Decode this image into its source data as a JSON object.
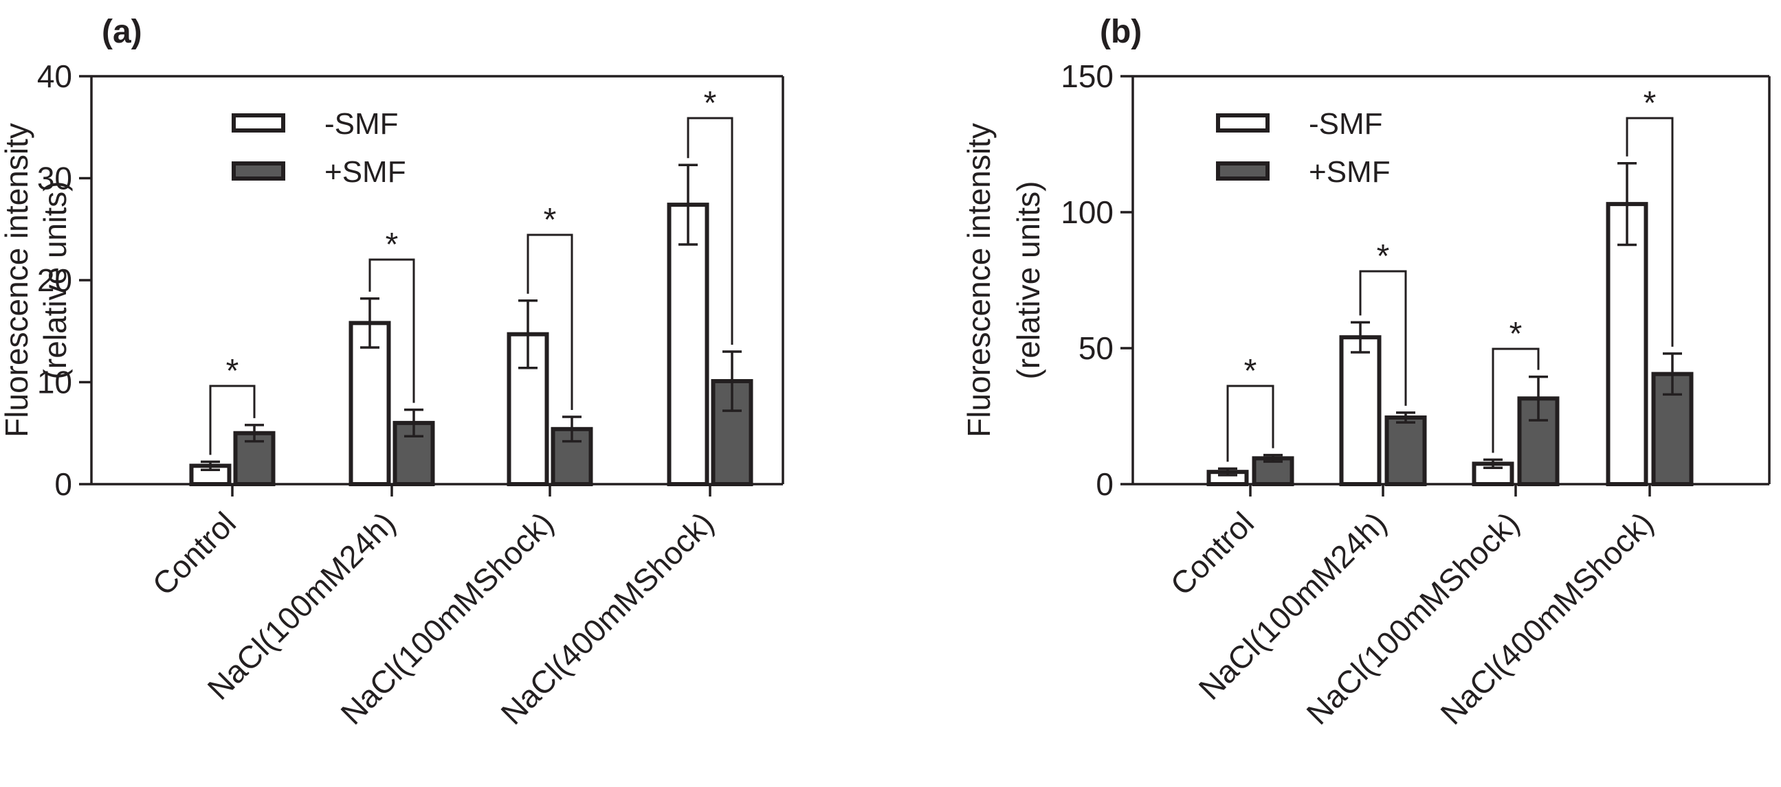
{
  "colors": {
    "minus_fill": "#ffffff",
    "plus_fill": "#595959",
    "ink": "#231f20"
  },
  "chart_data": [
    {
      "panel_label": "(a)",
      "type": "bar",
      "ylabel_line1": "Fluorescence intensity",
      "ylabel_line2": "(relative units)",
      "ylim": [
        0,
        40
      ],
      "yticks": [
        0,
        10,
        20,
        30,
        40
      ],
      "categories": [
        "Control",
        "NaCl(100mM24h)",
        "NaCl(100mMShock)",
        "NaCl(400mMShock)"
      ],
      "series": [
        {
          "name": "-SMF",
          "values": [
            1.8,
            15.8,
            14.7,
            27.4
          ],
          "errors": [
            0.4,
            2.4,
            3.3,
            3.9
          ]
        },
        {
          "name": "+SMF",
          "values": [
            5.0,
            6.0,
            5.4,
            10.1
          ],
          "errors": [
            0.8,
            1.3,
            1.2,
            2.9
          ]
        }
      ],
      "significance": [
        {
          "category": "Control",
          "label": "*"
        },
        {
          "category": "NaCl(100mM24h)",
          "label": "*"
        },
        {
          "category": "NaCl(100mMShock)",
          "label": "*"
        },
        {
          "category": "NaCl(400mMShock)",
          "label": "*"
        }
      ]
    },
    {
      "panel_label": "(b)",
      "type": "bar",
      "ylabel_line1": "Fluorescence intensity",
      "ylabel_line2": "(relative units)",
      "ylim": [
        0,
        150
      ],
      "yticks": [
        0,
        50,
        100,
        150
      ],
      "categories": [
        "Control",
        "NaCl(100mM24h)",
        "NaCl(100mMShock)",
        "NaCl(400mMShock)"
      ],
      "series": [
        {
          "name": "-SMF",
          "values": [
            4.5,
            54,
            7.5,
            103
          ],
          "errors": [
            1.2,
            5.5,
            1.5,
            15
          ]
        },
        {
          "name": "+SMF",
          "values": [
            9.5,
            24.5,
            31.5,
            40.5
          ],
          "errors": [
            1.2,
            1.8,
            8,
            7.5
          ]
        }
      ],
      "significance": [
        {
          "category": "Control",
          "label": "*"
        },
        {
          "category": "NaCl(100mM24h)",
          "label": "*"
        },
        {
          "category": "NaCl(100mMShock)",
          "label": "*"
        },
        {
          "category": "NaCl(400mMShock)",
          "label": "*"
        }
      ]
    }
  ]
}
